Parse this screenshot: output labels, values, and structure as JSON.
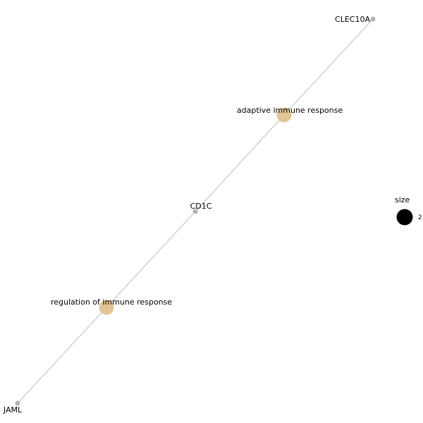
{
  "network": {
    "nodes": [
      {
        "id": "clec10a",
        "label": "CLEC10A",
        "kind": "gene",
        "color": "#b3b3b3"
      },
      {
        "id": "adaptive",
        "label": "adaptive immune response",
        "kind": "category",
        "color": "#e5c494"
      },
      {
        "id": "cd1c",
        "label": "CD1C",
        "kind": "gene",
        "color": "#b3b3b3"
      },
      {
        "id": "regulation",
        "label": "regulation of immune response",
        "kind": "category",
        "color": "#e5c494"
      },
      {
        "id": "jaml",
        "label": "JAML",
        "kind": "gene",
        "color": "#b3b3b3"
      }
    ],
    "edges": [
      {
        "from": "clec10a",
        "to": "adaptive"
      },
      {
        "from": "adaptive",
        "to": "cd1c"
      },
      {
        "from": "cd1c",
        "to": "regulation"
      },
      {
        "from": "regulation",
        "to": "jaml"
      }
    ],
    "edge_color": "#bdbdbd"
  },
  "legend": {
    "title": "size",
    "value": "2",
    "color": "#000000"
  }
}
